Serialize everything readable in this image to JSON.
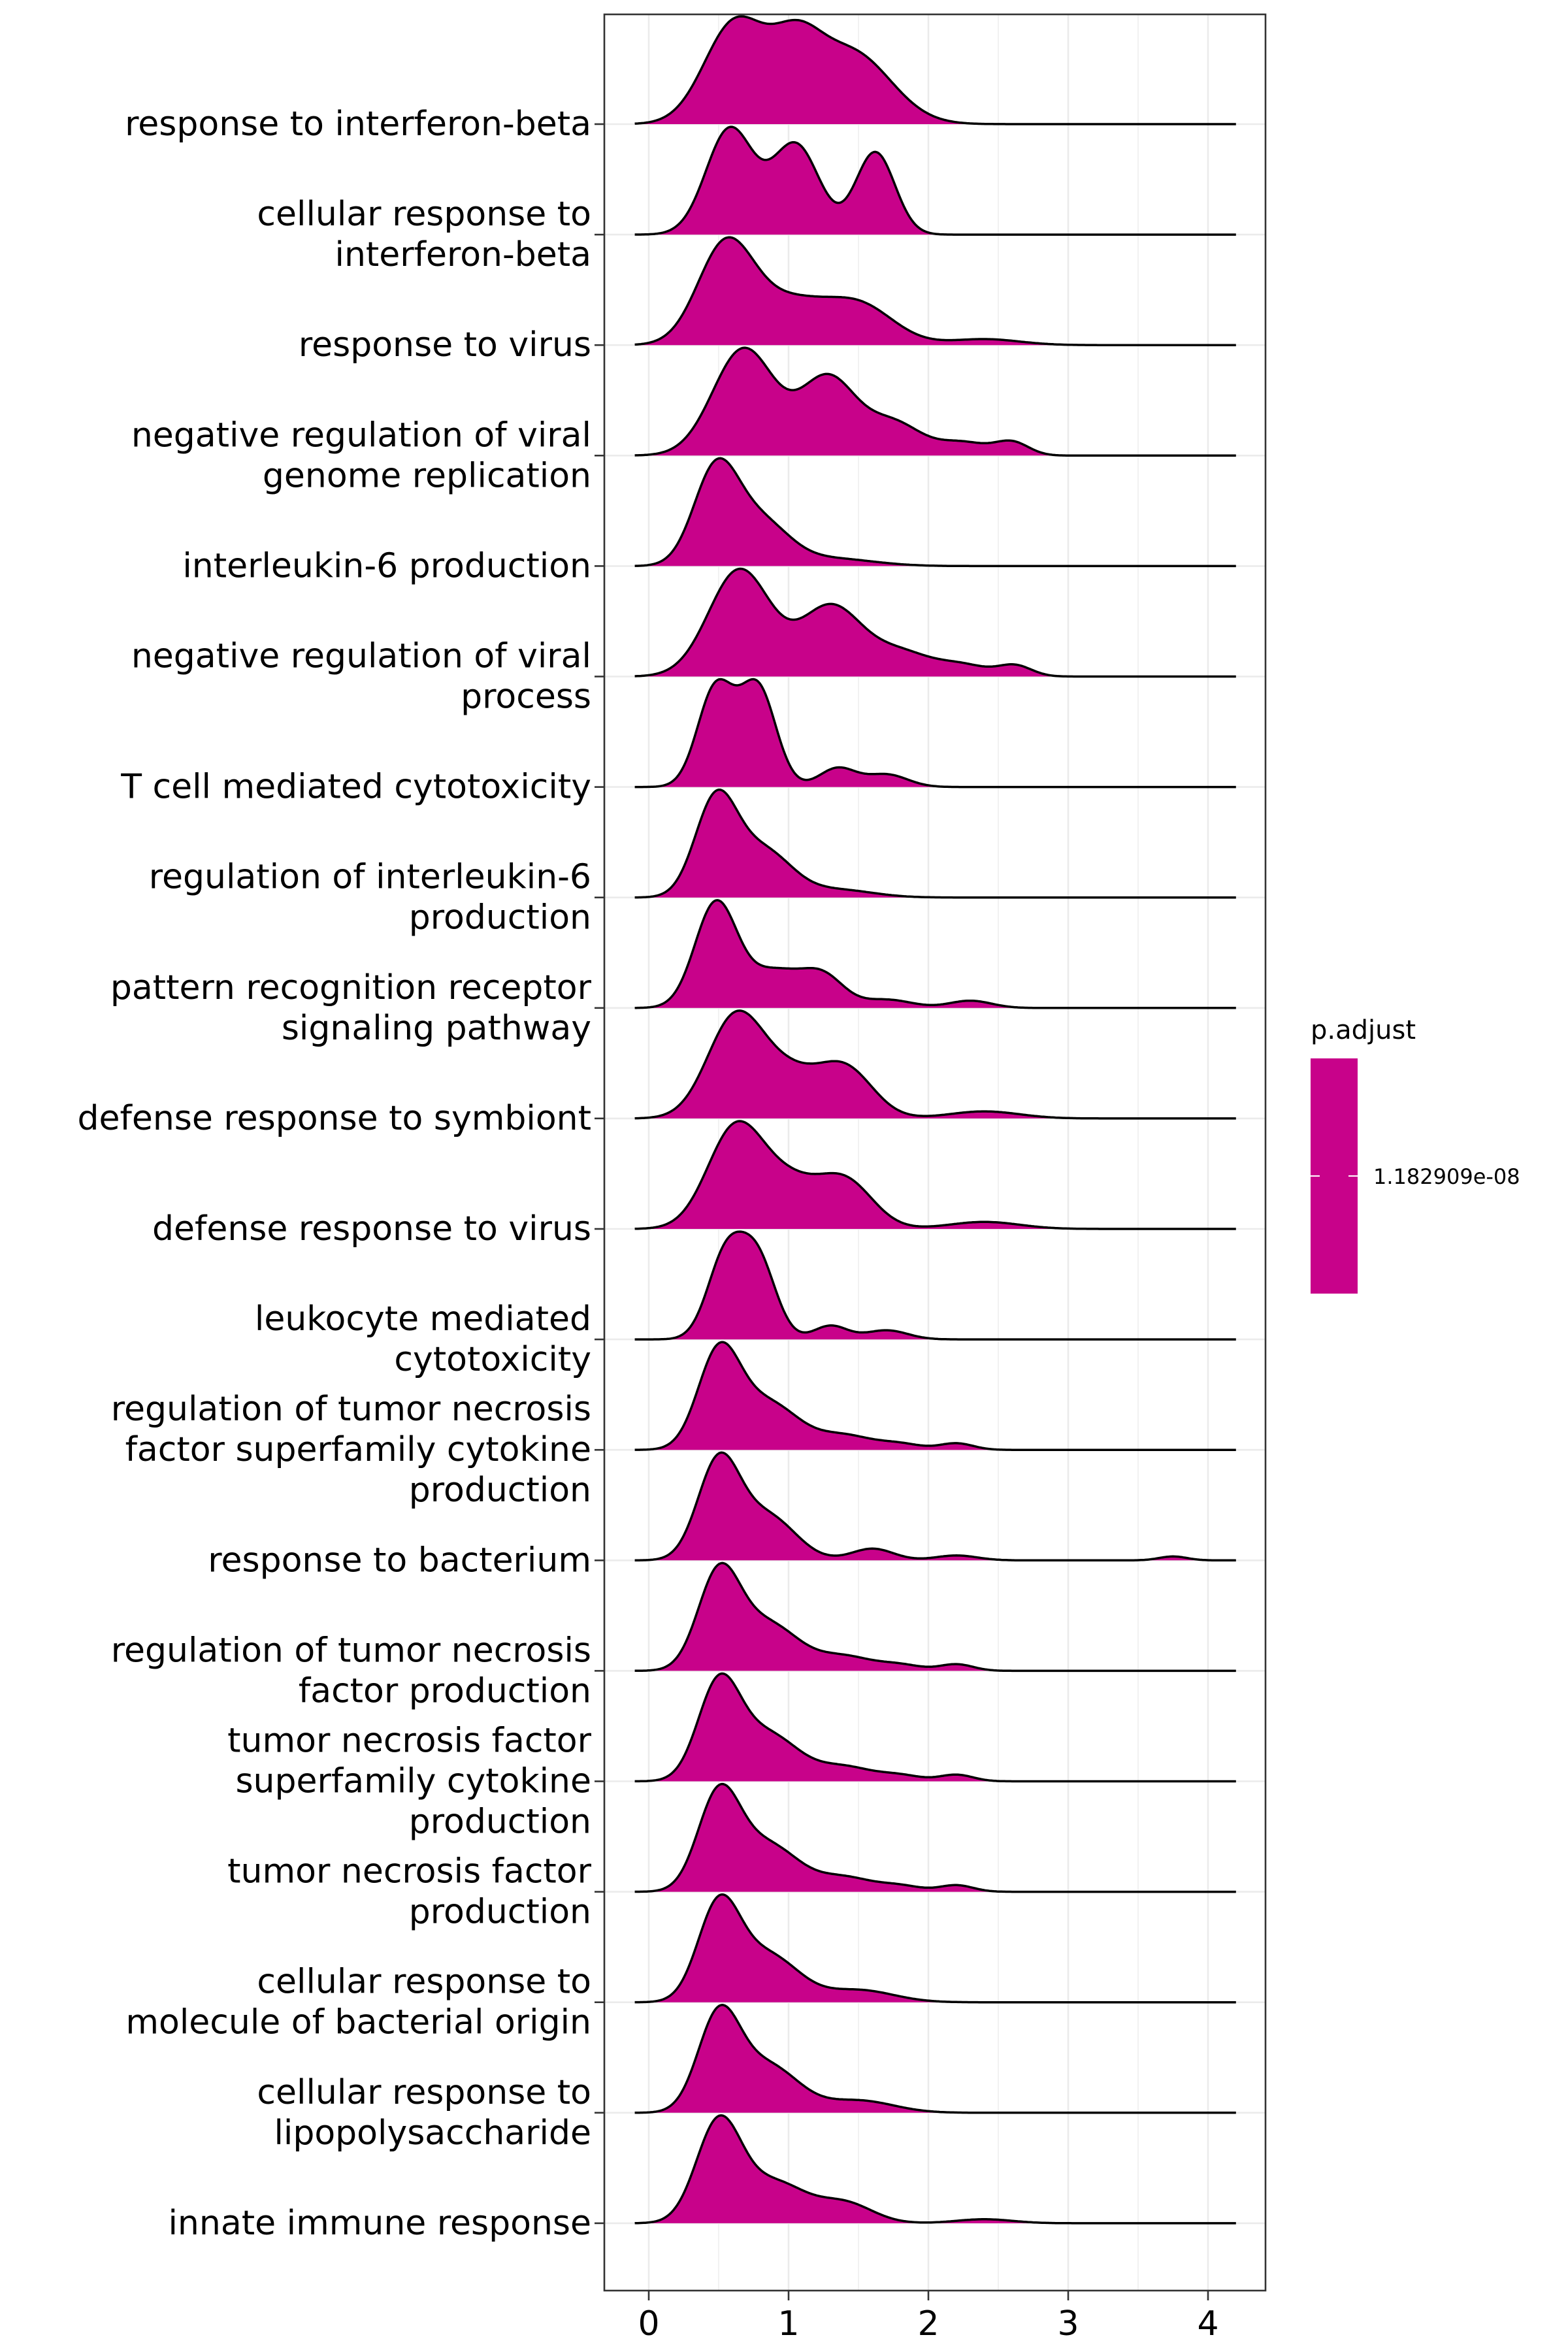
{
  "chart_data": {
    "type": "ridgeline",
    "xlim": [
      -0.1,
      4.2
    ],
    "x_ticks": [
      "0",
      "1",
      "2",
      "3",
      "4"
    ],
    "grid": true,
    "legend_position": "right",
    "fill_color": "#C8028A",
    "legend": {
      "title": "p.adjust",
      "label": "1.182909e-08",
      "color": "#C8028A"
    },
    "categories": [
      {
        "lines": [
          "response to interferon-beta"
        ],
        "peaks": [
          [
            0.62,
            1.0,
            0.22
          ],
          [
            1.05,
            0.62,
            0.18
          ],
          [
            1.45,
            0.7,
            0.28
          ]
        ]
      },
      {
        "lines": [
          "cellular response to",
          "interferon-beta"
        ],
        "peaks": [
          [
            0.58,
            1.0,
            0.17
          ],
          [
            1.05,
            0.85,
            0.17
          ],
          [
            1.62,
            0.78,
            0.14
          ]
        ]
      },
      {
        "lines": [
          "response to virus"
        ],
        "peaks": [
          [
            0.55,
            1.0,
            0.2
          ],
          [
            1.0,
            0.4,
            0.25
          ],
          [
            1.5,
            0.4,
            0.25
          ],
          [
            2.4,
            0.06,
            0.25
          ]
        ]
      },
      {
        "lines": [
          "negative regulation of viral",
          "genome replication"
        ],
        "peaks": [
          [
            0.68,
            1.0,
            0.22
          ],
          [
            1.28,
            0.72,
            0.2
          ],
          [
            1.75,
            0.3,
            0.2
          ],
          [
            2.25,
            0.12,
            0.18
          ],
          [
            2.6,
            0.12,
            0.12
          ]
        ]
      },
      {
        "lines": [
          "interleukin-6 production"
        ],
        "peaks": [
          [
            0.48,
            1.0,
            0.16
          ],
          [
            0.8,
            0.45,
            0.2
          ],
          [
            1.3,
            0.08,
            0.3
          ]
        ]
      },
      {
        "lines": [
          "negative regulation of viral",
          "process"
        ],
        "peaks": [
          [
            0.65,
            1.0,
            0.22
          ],
          [
            1.3,
            0.65,
            0.22
          ],
          [
            1.8,
            0.22,
            0.22
          ],
          [
            2.25,
            0.1,
            0.18
          ],
          [
            2.62,
            0.1,
            0.12
          ]
        ]
      },
      {
        "lines": [
          "T cell mediated cytotoxicity"
        ],
        "peaks": [
          [
            0.48,
            0.95,
            0.13
          ],
          [
            0.78,
            0.95,
            0.13
          ],
          [
            1.35,
            0.18,
            0.13
          ],
          [
            1.7,
            0.12,
            0.15
          ]
        ]
      },
      {
        "lines": [
          "regulation of interleukin-6",
          "production"
        ],
        "peaks": [
          [
            0.48,
            1.0,
            0.15
          ],
          [
            0.82,
            0.48,
            0.2
          ],
          [
            1.35,
            0.08,
            0.25
          ]
        ]
      },
      {
        "lines": [
          "pattern recognition receptor",
          "signaling pathway"
        ],
        "peaks": [
          [
            0.48,
            1.0,
            0.15
          ],
          [
            0.9,
            0.35,
            0.2
          ],
          [
            1.25,
            0.28,
            0.15
          ],
          [
            1.7,
            0.08,
            0.18
          ],
          [
            2.3,
            0.07,
            0.15
          ]
        ]
      },
      {
        "lines": [
          "defense response to symbiont"
        ],
        "peaks": [
          [
            0.62,
            1.0,
            0.2
          ],
          [
            1.0,
            0.38,
            0.2
          ],
          [
            1.4,
            0.5,
            0.2
          ],
          [
            2.4,
            0.07,
            0.25
          ]
        ]
      },
      {
        "lines": [
          "defense response to virus"
        ],
        "peaks": [
          [
            0.62,
            1.0,
            0.2
          ],
          [
            1.0,
            0.4,
            0.2
          ],
          [
            1.4,
            0.48,
            0.2
          ],
          [
            2.4,
            0.07,
            0.25
          ]
        ]
      },
      {
        "lines": [
          "leukocyte mediated",
          "cytotoxicity"
        ],
        "peaks": [
          [
            0.55,
            0.9,
            0.13
          ],
          [
            0.78,
            0.85,
            0.13
          ],
          [
            1.3,
            0.15,
            0.12
          ],
          [
            1.7,
            0.1,
            0.15
          ]
        ]
      },
      {
        "lines": [
          "regulation of tumor necrosis",
          "factor superfamily cytokine",
          "production"
        ],
        "peaks": [
          [
            0.5,
            1.0,
            0.15
          ],
          [
            0.85,
            0.5,
            0.22
          ],
          [
            1.4,
            0.15,
            0.2
          ],
          [
            1.8,
            0.06,
            0.15
          ],
          [
            2.2,
            0.07,
            0.12
          ]
        ]
      },
      {
        "lines": [
          "response to bacterium"
        ],
        "peaks": [
          [
            0.5,
            1.0,
            0.15
          ],
          [
            0.85,
            0.45,
            0.2
          ],
          [
            1.6,
            0.12,
            0.15
          ],
          [
            2.2,
            0.05,
            0.15
          ],
          [
            3.75,
            0.04,
            0.1
          ]
        ]
      },
      {
        "lines": [
          "regulation of tumor necrosis",
          "factor production"
        ],
        "peaks": [
          [
            0.5,
            1.0,
            0.15
          ],
          [
            0.85,
            0.5,
            0.22
          ],
          [
            1.4,
            0.15,
            0.2
          ],
          [
            1.8,
            0.06,
            0.15
          ],
          [
            2.2,
            0.07,
            0.12
          ]
        ]
      },
      {
        "lines": [
          "tumor necrosis factor",
          "superfamily cytokine",
          "production"
        ],
        "peaks": [
          [
            0.5,
            1.0,
            0.15
          ],
          [
            0.85,
            0.5,
            0.22
          ],
          [
            1.4,
            0.15,
            0.2
          ],
          [
            1.8,
            0.06,
            0.15
          ],
          [
            2.2,
            0.07,
            0.12
          ]
        ]
      },
      {
        "lines": [
          "tumor necrosis factor",
          "production"
        ],
        "peaks": [
          [
            0.5,
            1.0,
            0.15
          ],
          [
            0.85,
            0.5,
            0.22
          ],
          [
            1.4,
            0.15,
            0.2
          ],
          [
            1.8,
            0.06,
            0.15
          ],
          [
            2.2,
            0.07,
            0.12
          ]
        ]
      },
      {
        "lines": [
          "cellular response to",
          "molecule of bacterial origin"
        ],
        "peaks": [
          [
            0.5,
            1.0,
            0.15
          ],
          [
            0.85,
            0.5,
            0.22
          ],
          [
            1.5,
            0.13,
            0.25
          ]
        ]
      },
      {
        "lines": [
          "cellular response to",
          "lipopolysaccharide"
        ],
        "peaks": [
          [
            0.5,
            1.0,
            0.15
          ],
          [
            0.85,
            0.5,
            0.22
          ],
          [
            1.5,
            0.13,
            0.25
          ]
        ]
      },
      {
        "lines": [
          "innate immune response"
        ],
        "peaks": [
          [
            0.5,
            1.0,
            0.16
          ],
          [
            0.9,
            0.4,
            0.22
          ],
          [
            1.4,
            0.2,
            0.2
          ],
          [
            2.4,
            0.04,
            0.2
          ]
        ]
      }
    ]
  }
}
